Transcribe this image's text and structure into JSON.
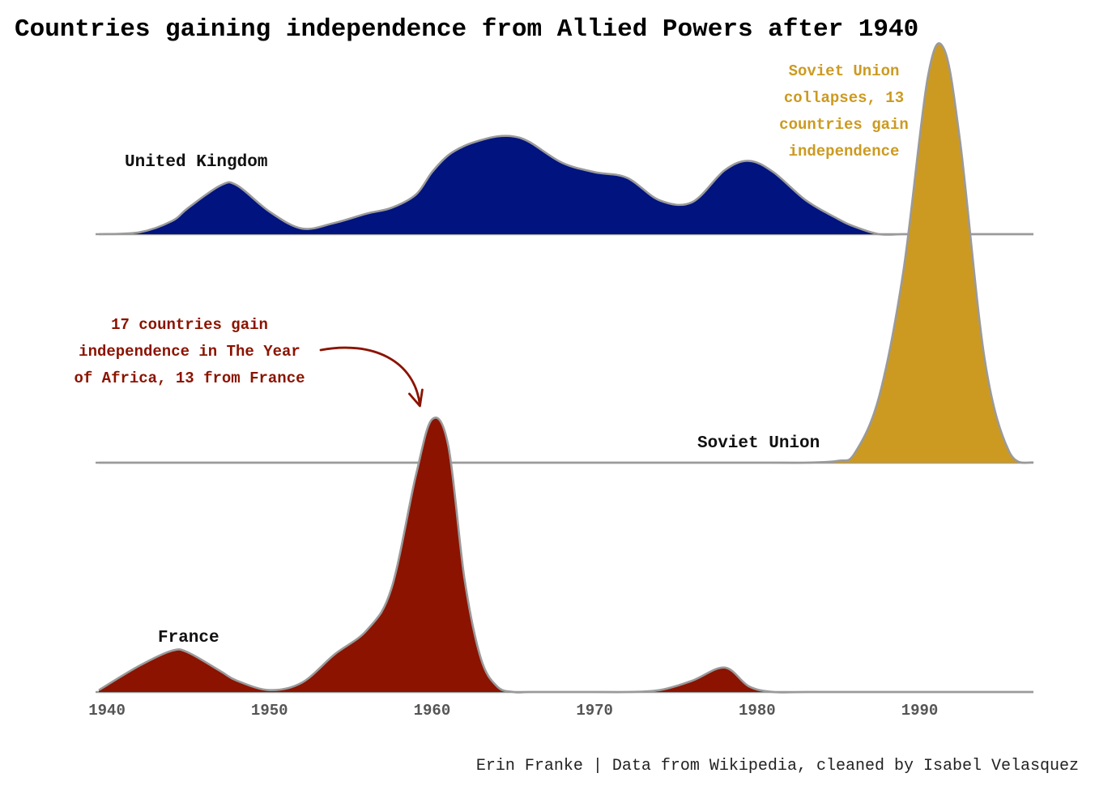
{
  "chart_data": {
    "type": "area",
    "subtype": "ridgeline-density",
    "title": "Countries gaining independence from Allied Powers after 1940",
    "caption": "Erin Franke | Data from Wikipedia, cleaned by Isabel Velasquez",
    "xlabel": "",
    "ylabel": "",
    "xlim": [
      1939.3,
      1997
    ],
    "x_ticks": [
      "1940",
      "1950",
      "1960",
      "1970",
      "1980",
      "1990"
    ],
    "x_tick_values": [
      1940,
      1950,
      1960,
      1970,
      1980,
      1990
    ],
    "grid": false,
    "legend": "none",
    "density_note_ratios": "heights are relative density, shared scale across ridges",
    "x": [
      1939.5,
      1942,
      1944,
      1945,
      1947,
      1948,
      1950,
      1952,
      1954,
      1956,
      1957.5,
      1959,
      1960,
      1961,
      1962,
      1963,
      1964,
      1965,
      1966,
      1968,
      1970,
      1972,
      1974,
      1976,
      1978,
      1979.5,
      1981,
      1983,
      1985,
      1986,
      1987.5,
      1989,
      1990.5,
      1991.5,
      1992.5,
      1994,
      1995.5,
      1997
    ],
    "series": [
      {
        "name": "United Kingdom",
        "color": "#00137F",
        "values": [
          0.0,
          0.01,
          0.07,
          0.14,
          0.26,
          0.26,
          0.12,
          0.03,
          0.06,
          0.11,
          0.14,
          0.21,
          0.33,
          0.42,
          0.47,
          0.5,
          0.52,
          0.52,
          0.49,
          0.38,
          0.33,
          0.3,
          0.18,
          0.17,
          0.34,
          0.39,
          0.33,
          0.18,
          0.08,
          0.04,
          0.0,
          0.0,
          0.0,
          0.0,
          0.0,
          0.0,
          0.0,
          0.0
        ]
      },
      {
        "name": "Soviet Union",
        "color": "#CC9A20",
        "values": [
          0.0,
          0.0,
          0.0,
          0.0,
          0.0,
          0.0,
          0.0,
          0.0,
          0.0,
          0.0,
          0.0,
          0.0,
          0.0,
          0.0,
          0.0,
          0.0,
          0.0,
          0.0,
          0.0,
          0.0,
          0.0,
          0.0,
          0.0,
          0.0,
          0.0,
          0.0,
          0.0,
          0.0,
          0.01,
          0.05,
          0.35,
          1.02,
          2.05,
          2.2,
          1.7,
          0.55,
          0.06,
          0.0
        ]
      },
      {
        "name": "France",
        "color": "#8B1300",
        "values": [
          0.01,
          0.14,
          0.22,
          0.21,
          0.11,
          0.06,
          0.01,
          0.05,
          0.2,
          0.33,
          0.55,
          1.15,
          1.45,
          1.31,
          0.6,
          0.18,
          0.03,
          0.0,
          0.0,
          0.0,
          0.0,
          0.0,
          0.01,
          0.06,
          0.13,
          0.03,
          0.0,
          0.0,
          0.0,
          0.0,
          0.0,
          0.0,
          0.0,
          0.0,
          0.0,
          0.0,
          0.0,
          0.0
        ]
      }
    ],
    "annotations": [
      {
        "id": "soviet",
        "color": "#CC9A20",
        "lines": [
          "Soviet Union",
          "collapses, 13",
          "countries gain",
          "independence"
        ]
      },
      {
        "id": "africa",
        "color": "#8B1300",
        "lines": [
          "17 countries gain",
          "independence in The Year",
          "of Africa, 13 from France"
        ],
        "arrow_to_x": 1960
      }
    ]
  }
}
